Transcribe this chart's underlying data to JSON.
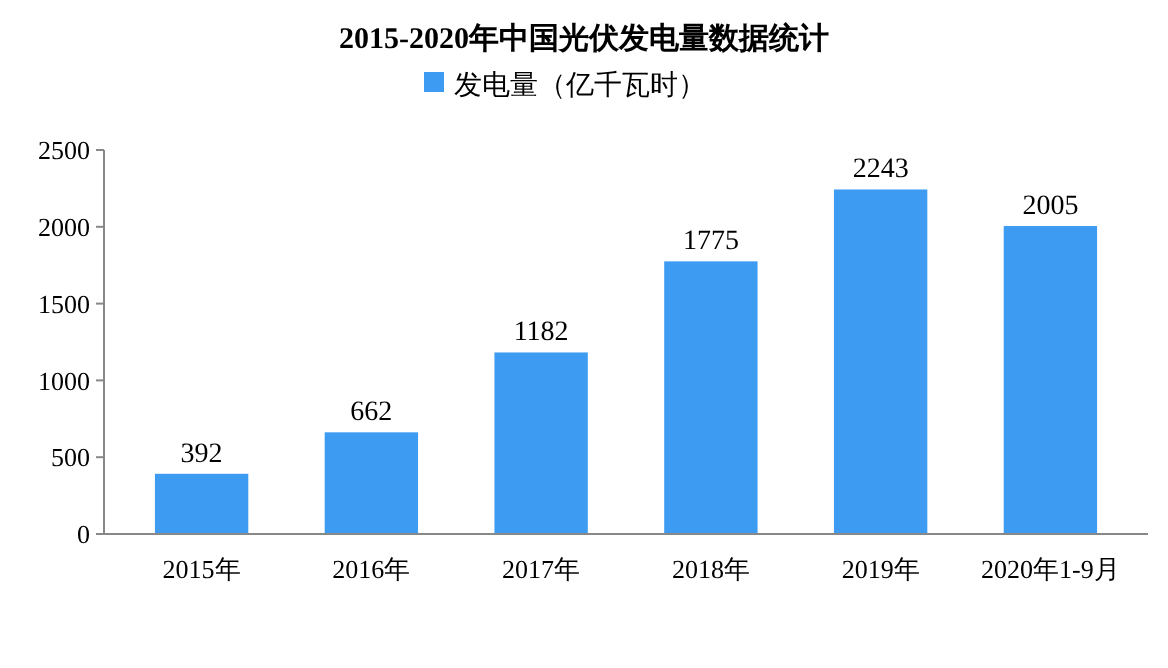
{
  "chart_data": {
    "type": "bar",
    "title": "2015-2020年中国光伏发电量数据统计",
    "categories": [
      "2015年",
      "2016年",
      "2017年",
      "2018年",
      "2019年",
      "2020年1-9月"
    ],
    "series": [
      {
        "name": "发电量（亿千瓦时）",
        "color": "#3d9cf2",
        "values": [
          392,
          662,
          1182,
          1775,
          2243,
          2005
        ]
      }
    ],
    "ylim": [
      0,
      2500
    ],
    "yticks": [
      0,
      500,
      1000,
      1500,
      2000,
      2500
    ],
    "grid": false,
    "legend": "top",
    "data_labels": true
  }
}
